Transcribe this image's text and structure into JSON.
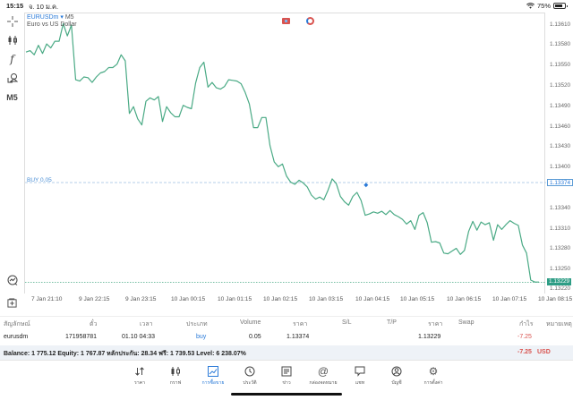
{
  "status_bar": {
    "time": "15:15",
    "date": "จ. 10 ม.ค.",
    "wifi_icon": "wifi-icon",
    "battery_percent": "75%"
  },
  "left_toolbar": [
    {
      "name": "crosshair-icon",
      "label": ""
    },
    {
      "name": "indicators-icon",
      "label": ""
    },
    {
      "name": "function-icon",
      "label": "f"
    },
    {
      "name": "objects-icon",
      "label": ""
    },
    {
      "name": "timeframe-button",
      "label": "M5"
    },
    {
      "name": "trade-quick-icon",
      "label": ""
    },
    {
      "name": "new-order-icon",
      "label": ""
    }
  ],
  "chart": {
    "symbol": "EURUSDm",
    "symbol_arrow": "▾",
    "timeframe": "M5",
    "description": "Euro vs US Dollar",
    "buy_label": "BUY 0.05",
    "buy_price_tag": "1.13374",
    "last_price_tag": "1.13229",
    "line_color": "#4aaa85",
    "buy_line_color": "#8fb8e0",
    "last_line_color": "#4aaa85"
  },
  "chart_data": {
    "type": "line",
    "title": "EURUSDm M5 — Euro vs US Dollar",
    "xlabel": "",
    "ylabel": "",
    "x_ticks": [
      "7 Jan 21:10",
      "9 Jan 22:15",
      "9 Jan 23:15",
      "10 Jan 00:15",
      "10 Jan 01:15",
      "10 Jan 02:15",
      "10 Jan 03:15",
      "10 Jan 04:15",
      "10 Jan 05:15",
      "10 Jan 06:15",
      "10 Jan 07:15",
      "10 Jan 08:15"
    ],
    "y_ticks": [
      "1.13610",
      "1.13580",
      "1.13550",
      "1.13520",
      "1.13490",
      "1.13460",
      "1.13430",
      "1.13400",
      "1.13370",
      "1.13340",
      "1.13310",
      "1.13280",
      "1.13250",
      "1.13220"
    ],
    "ylim": [
      1.1321,
      1.1363
    ],
    "grid": false,
    "series": [
      {
        "name": "EURUSDm close",
        "values": [
          1.1357,
          1.13572,
          1.13566,
          1.1358,
          1.13568,
          1.13582,
          1.13576,
          1.13586,
          1.13586,
          1.13612,
          1.13594,
          1.1361,
          1.13529,
          1.13527,
          1.13533,
          1.13532,
          1.13525,
          1.13533,
          1.13539,
          1.13541,
          1.13547,
          1.13547,
          1.13552,
          1.13566,
          1.13557,
          1.13479,
          1.13489,
          1.13471,
          1.13462,
          1.13497,
          1.13502,
          1.13499,
          1.13504,
          1.13467,
          1.13489,
          1.1348,
          1.13474,
          1.13474,
          1.13491,
          1.13488,
          1.13486,
          1.13524,
          1.13547,
          1.13555,
          1.13518,
          1.13525,
          1.13517,
          1.13515,
          1.13519,
          1.13529,
          1.13528,
          1.13527,
          1.13523,
          1.1351,
          1.13493,
          1.13458,
          1.13458,
          1.13473,
          1.13473,
          1.13431,
          1.13407,
          1.134,
          1.13404,
          1.13386,
          1.13377,
          1.13374,
          1.1338,
          1.13376,
          1.1337,
          1.13358,
          1.13352,
          1.13355,
          1.13351,
          1.13365,
          1.13382,
          1.13375,
          1.13356,
          1.13348,
          1.13343,
          1.13356,
          1.13362,
          1.1335,
          1.13328,
          1.1333,
          1.13333,
          1.13331,
          1.13334,
          1.13329,
          1.13335,
          1.13329,
          1.13326,
          1.13322,
          1.13315,
          1.1332,
          1.13307,
          1.13328,
          1.13332,
          1.13317,
          1.13288,
          1.13289,
          1.13287,
          1.13272,
          1.13271,
          1.13275,
          1.13279,
          1.1327,
          1.13276,
          1.13304,
          1.13319,
          1.13306,
          1.13318,
          1.13314,
          1.13317,
          1.13291,
          1.13314,
          1.13307,
          1.13314,
          1.1332,
          1.13316,
          1.13313,
          1.13284,
          1.13272,
          1.13232,
          1.13229,
          1.13229
        ]
      }
    ],
    "annotations": [
      {
        "type": "hline",
        "label": "BUY 0.05",
        "value": 1.13374
      },
      {
        "type": "hline",
        "label": "last",
        "value": 1.13229
      }
    ]
  },
  "positions_table": {
    "headers": [
      "สัญลักษณ์",
      "ตั๋ว",
      "เวลา",
      "ประเภท",
      "Volume",
      "ราคา",
      "S/L",
      "T/P",
      "ราคา",
      "Swap",
      "กำไร",
      "หมายเหตุ"
    ],
    "rows": [
      {
        "symbol": "eurusdm",
        "ticket": "171958781",
        "time": "01.10 04:33",
        "type": "buy",
        "volume": "0.05",
        "open_price": "1.13374",
        "sl": "",
        "tp": "",
        "price": "1.13229",
        "swap": "",
        "profit": "-7.25",
        "comment": ""
      }
    ]
  },
  "summary": {
    "text": "Balance: 1 775.12 Equity: 1 767.87 หลักประกัน: 28.34 ฟรี: 1 739.53 Level: 6 238.07%",
    "total_profit": "-7.25",
    "currency": "USD"
  },
  "tabbar": {
    "active_index": 2,
    "items": [
      {
        "name": "tab-quotes",
        "icon": "quotes-arrows-icon",
        "label": "ราคา"
      },
      {
        "name": "tab-chart",
        "icon": "candles-icon",
        "label": "กราฟ"
      },
      {
        "name": "tab-trade",
        "icon": "trade-chart-icon",
        "label": "การซื้อขาย"
      },
      {
        "name": "tab-history",
        "icon": "history-clock-icon",
        "label": "ประวัติ"
      },
      {
        "name": "tab-news",
        "icon": "news-icon",
        "label": "ข่าว"
      },
      {
        "name": "tab-mailbox",
        "icon": "at-mail-icon",
        "label": "กล่องจดหมาย"
      },
      {
        "name": "tab-chat",
        "icon": "chat-bubble-icon",
        "label": "แชท"
      },
      {
        "name": "tab-accounts",
        "icon": "account-icon",
        "label": "บัญชี"
      },
      {
        "name": "tab-settings",
        "icon": "gear-icon",
        "label": "การตั้งค่า"
      }
    ]
  }
}
